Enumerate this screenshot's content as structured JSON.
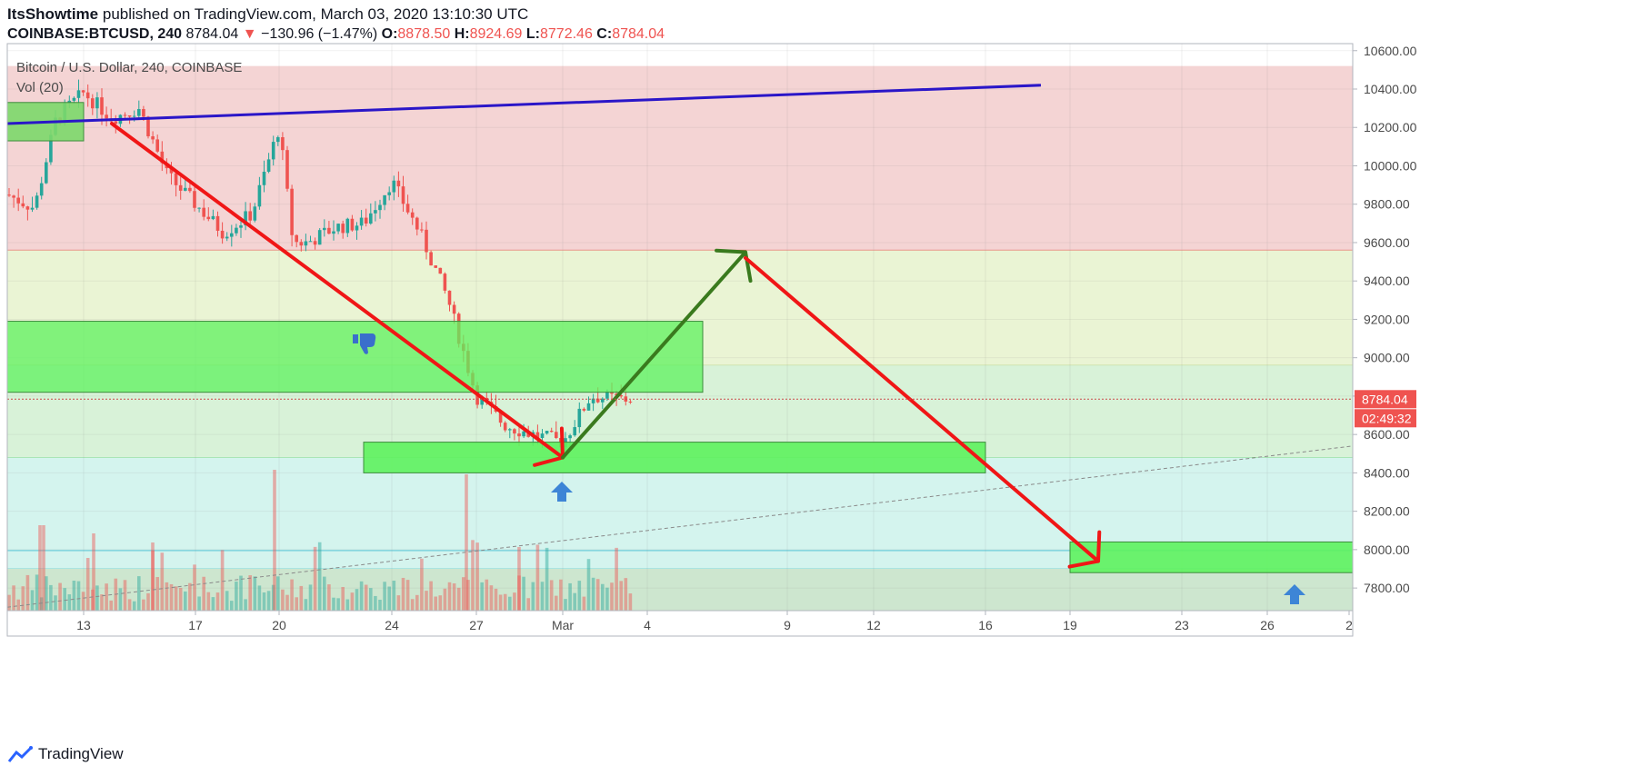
{
  "header": {
    "author": "ItsShowtime",
    "published_text": "published on TradingView.com, March 03, 2020 13:10:30 UTC",
    "symbol": "COINBASE:BTCUSD, 240",
    "last": "8784.04",
    "change_arrow": "▼",
    "change": "−130.96 (−1.47%)",
    "o_label": "O:",
    "o_val": "8878.50",
    "h_label": "H:",
    "h_val": "8924.69",
    "l_label": "L:",
    "l_val": "8772.46",
    "c_label": "C:",
    "c_val": "8784.04"
  },
  "legend": {
    "title": "Bitcoin / U.S. Dollar, 240, COINBASE",
    "volume": "Vol (20)"
  },
  "footer": {
    "brand": "TradingView"
  },
  "colors": {
    "up": "#26a69a",
    "down": "#ef5350",
    "zone_red": "#f4d4d4",
    "zone_yellow": "#eaf4d4",
    "zone_green": "#d8f2d8",
    "zone_teal": "#d4f4ee",
    "green_box": "#5ef25e",
    "trend_blue": "#2a16c8",
    "arrow_red": "#f01616",
    "arrow_green": "#3a7a1e",
    "price_tag": "#ef5350",
    "hand_icon": "#3a6fcc",
    "up_arrow_icon": "#3d85d6"
  },
  "chart_data": {
    "type": "candlestick",
    "title": "Bitcoin / U.S. Dollar, 240, COINBASE",
    "y_axis": {
      "ylim": [
        7700,
        10650
      ],
      "ticks": [
        "10600.00",
        "10400.00",
        "10200.00",
        "10000.00",
        "9800.00",
        "9600.00",
        "9400.00",
        "9200.00",
        "9000.00",
        "8800.00",
        "8600.00",
        "8400.00",
        "8200.00",
        "8000.00",
        "7800.00"
      ],
      "last_price_tag": "8784.04",
      "countdown_tag": "02:49:32"
    },
    "x_axis": {
      "ticks": [
        "13",
        "17",
        "20",
        "24",
        "27",
        "Mar",
        "4",
        "9",
        "12",
        "16",
        "19",
        "23",
        "26",
        "2"
      ]
    },
    "price_anchors": [
      {
        "x": "Feb 10",
        "y": 9850
      },
      {
        "x": "Feb 11",
        "y": 9780
      },
      {
        "x": "Feb 12",
        "y": 10250
      },
      {
        "x": "Feb 13",
        "y": 10380
      },
      {
        "x": "Feb 14",
        "y": 10250
      },
      {
        "x": "Feb 15",
        "y": 10300
      },
      {
        "x": "Feb 16",
        "y": 9950
      },
      {
        "x": "Feb 17",
        "y": 9800
      },
      {
        "x": "Feb 18",
        "y": 9650
      },
      {
        "x": "Feb 19",
        "y": 9750
      },
      {
        "x": "Feb 20",
        "y": 10200
      },
      {
        "x": "Feb 20 12:00",
        "y": 9600
      },
      {
        "x": "Feb 21",
        "y": 9600
      },
      {
        "x": "Feb 22",
        "y": 9680
      },
      {
        "x": "Feb 23",
        "y": 9700
      },
      {
        "x": "Feb 24",
        "y": 9920
      },
      {
        "x": "Feb 25",
        "y": 9650
      },
      {
        "x": "Feb 26",
        "y": 9300
      },
      {
        "x": "Feb 27",
        "y": 8800
      },
      {
        "x": "Feb 28",
        "y": 8650
      },
      {
        "x": "Feb 29",
        "y": 8600
      },
      {
        "x": "Mar 1",
        "y": 8560
      },
      {
        "x": "Mar 2",
        "y": 8800
      },
      {
        "x": "Mar 3",
        "y": 8784
      }
    ],
    "zones": [
      {
        "from": 9560,
        "to": 10520,
        "color": "red"
      },
      {
        "from": 8960,
        "to": 9560,
        "color": "yellow"
      },
      {
        "from": 8480,
        "to": 8960,
        "color": "green"
      },
      {
        "from": 7900,
        "to": 8480,
        "color": "teal"
      }
    ],
    "boxes": [
      {
        "x0": "Feb 10",
        "x1": "Feb 13",
        "y0": 10130,
        "y1": 10330
      },
      {
        "x0": "Feb 10",
        "x1": "Mar 6",
        "y0": 8820,
        "y1": 9190
      },
      {
        "x0": "Feb 23",
        "x1": "Mar 16",
        "y0": 8400,
        "y1": 8560
      },
      {
        "x0": "Mar 19",
        "x1": "Apr 2",
        "y0": 7880,
        "y1": 8040
      }
    ],
    "trendlines": [
      {
        "x0": "Feb 10",
        "y0": 10220,
        "x1": "Mar 18",
        "y1": 10420,
        "color": "blue"
      },
      {
        "x0": "Feb 10",
        "y0": 7700,
        "x1": "Apr 2",
        "y1": 8540,
        "color": "dashed"
      }
    ],
    "arrows": [
      {
        "x0": "Feb 14",
        "y0": 10220,
        "x1": "Mar 1",
        "y1": 8480,
        "color": "red"
      },
      {
        "x0": "Mar 1",
        "y0": 8480,
        "x1": "Mar 7",
        "y1": 9550,
        "color": "green"
      },
      {
        "x0": "Mar 7",
        "y0": 9520,
        "x1": "Mar 20",
        "y1": 7940,
        "color": "red"
      }
    ]
  }
}
